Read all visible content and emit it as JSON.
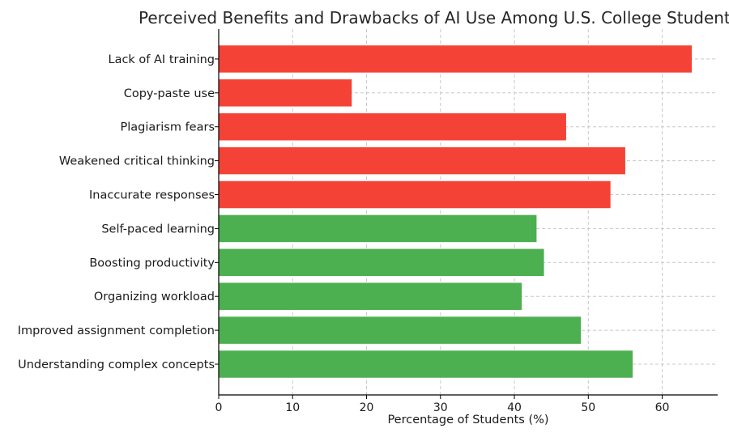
{
  "chart_data": {
    "type": "bar",
    "orientation": "horizontal",
    "title": "Perceived Benefits and Drawbacks of AI Use Among U.S. College Students",
    "xlabel": "Percentage of Students (%)",
    "ylabel": "",
    "xlim": [
      0,
      67.5
    ],
    "xticks": [
      0,
      10,
      20,
      30,
      40,
      50,
      60
    ],
    "grid": true,
    "categories": [
      "Understanding complex concepts",
      "Improved assignment completion",
      "Organizing workload",
      "Boosting productivity",
      "Self-paced learning",
      "Inaccurate responses",
      "Weakened critical thinking",
      "Plagiarism fears",
      "Copy-paste use",
      "Lack of AI training"
    ],
    "values": [
      56,
      49,
      41,
      44,
      43,
      53,
      55,
      47,
      18,
      64
    ],
    "bar_colors": [
      "#4caf50",
      "#4caf50",
      "#4caf50",
      "#4caf50",
      "#4caf50",
      "#f44336",
      "#f44336",
      "#f44336",
      "#f44336",
      "#f44336"
    ]
  }
}
